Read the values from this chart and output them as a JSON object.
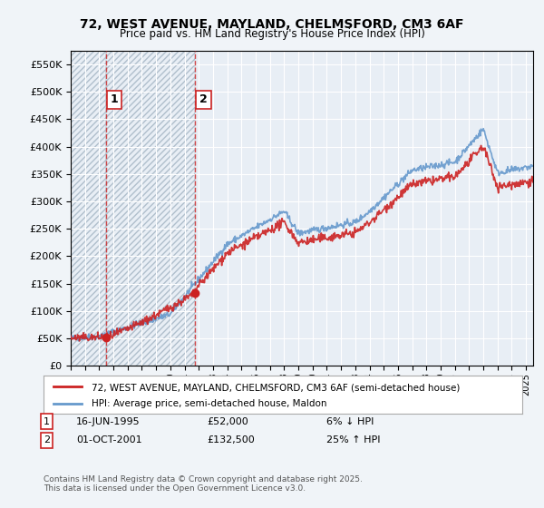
{
  "title": "72, WEST AVENUE, MAYLAND, CHELMSFORD, CM3 6AF",
  "subtitle": "Price paid vs. HM Land Registry's House Price Index (HPI)",
  "ylabel": "",
  "bg_color": "#f0f4f8",
  "plot_bg": "#e8eef5",
  "hatch_color": "#c8d4e0",
  "grid_color": "#ffffff",
  "purchase1": {
    "date": 1995.46,
    "price": 52000,
    "label": "1"
  },
  "purchase2": {
    "date": 2001.75,
    "price": 132500,
    "label": "2"
  },
  "legend_line1": "72, WEST AVENUE, MAYLAND, CHELMSFORD, CM3 6AF (semi-detached house)",
  "legend_line2": "HPI: Average price, semi-detached house, Maldon",
  "table_row1": [
    "1",
    "16-JUN-1995",
    "£52,000",
    "6% ↓ HPI"
  ],
  "table_row2": [
    "2",
    "01-OCT-2001",
    "£132,500",
    "25% ↑ HPI"
  ],
  "footer": "Contains HM Land Registry data © Crown copyright and database right 2025.\nThis data is licensed under the Open Government Licence v3.0.",
  "ylim": [
    0,
    575000
  ],
  "yticks": [
    0,
    50000,
    100000,
    150000,
    200000,
    250000,
    300000,
    350000,
    400000,
    450000,
    500000,
    550000
  ],
  "xlim_start": 1993.0,
  "xlim_end": 2025.5
}
